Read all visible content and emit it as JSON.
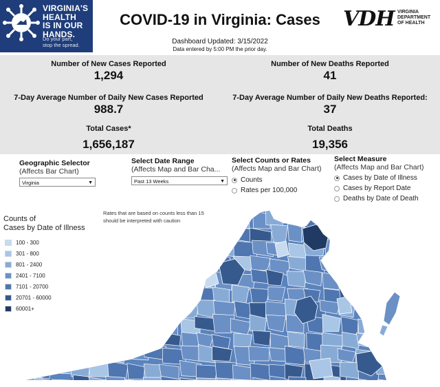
{
  "header": {
    "logo_lines": [
      "VIRGINIA'S",
      "HEALTH",
      "IS IN OUR",
      "HANDS."
    ],
    "logo_tagline": [
      "Do your part,",
      "stop the spread."
    ],
    "title": "COVID-19 in Virginia: Cases",
    "updated": "Dashboard Updated: 3/15/2022",
    "entered": "Data entered by 5:00 PM the prior day.",
    "vdh_mark": "VDH",
    "vdh_name": [
      "VIRGINIA",
      "DEPARTMENT",
      "OF HEALTH"
    ]
  },
  "stats": {
    "new_cases_label": "Number of New Cases Reported",
    "new_cases_value": "1,294",
    "new_deaths_label": "Number of New Deaths Reported",
    "new_deaths_value": "41",
    "avg_cases_label": "7-Day Average Number of Daily New Cases Reported",
    "avg_cases_value": "988.7",
    "avg_deaths_label": "7-Day Average Number of Daily New Deaths Reported:",
    "avg_deaths_value": "37",
    "total_cases_label": "Total Cases*",
    "total_cases_value": "1,656,187",
    "total_deaths_label": "Total Deaths",
    "total_deaths_value": "19,356"
  },
  "controls": {
    "geo": {
      "title": "Geographic Selector",
      "sub": "(Affects Bar Chart)",
      "value": "Virginia"
    },
    "date": {
      "title": "Select Date Range",
      "sub": "(Affects Map and Bar Cha...",
      "value": "Past 13 Weeks"
    },
    "counts": {
      "title": "Select Counts or Rates",
      "sub": "(Affects Map and Bar Chart)",
      "options": [
        "Counts",
        "Rates per 100,000"
      ],
      "selected": 0
    },
    "measure": {
      "title": "Select Measure",
      "sub": "(Affects Map and Bar Chart)",
      "options": [
        "Cases by Date of Illness",
        "Cases by Report Date",
        "Deaths by Date of Death"
      ],
      "selected": 0
    }
  },
  "legend": {
    "title": [
      "Counts of",
      "Cases by Date of Illness"
    ],
    "items": [
      {
        "label": "100 - 300",
        "color": "#c6dbef"
      },
      {
        "label": "301 - 800",
        "color": "#a9c6e6"
      },
      {
        "label": "801 - 2400",
        "color": "#88abd6"
      },
      {
        "label": "2401 - 7100",
        "color": "#6a90c6"
      },
      {
        "label": "7101 - 20700",
        "color": "#4f76b0"
      },
      {
        "label": "20701 - 60000",
        "color": "#375a8e"
      },
      {
        "label": "60001+",
        "color": "#213a63"
      }
    ]
  },
  "note": "Rates that are based on counts less than 15 should be interpreted with caution",
  "colors": {
    "stats_bg": "#e6e6e6",
    "logo_bg": "#1f3d7a",
    "map_base": "#5b83bd"
  }
}
